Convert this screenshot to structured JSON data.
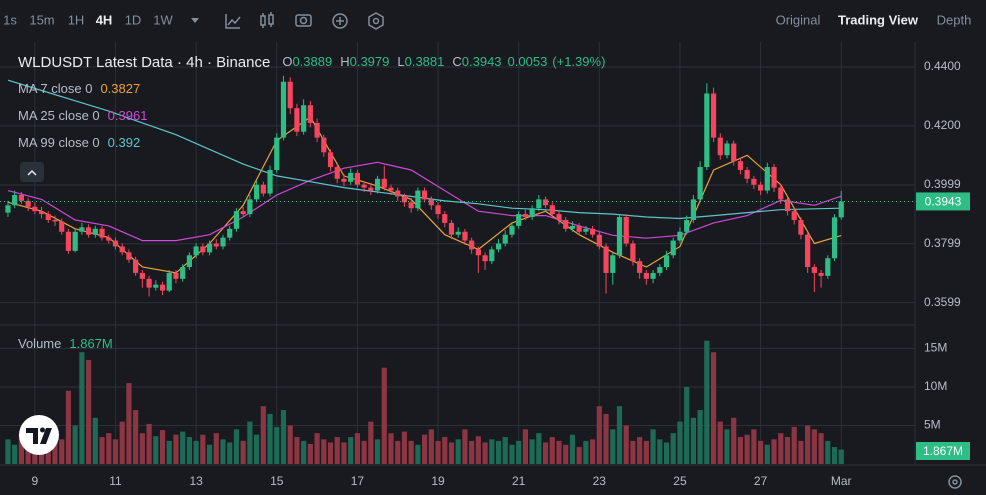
{
  "toolbar": {
    "intervals": [
      "1s",
      "15m",
      "1H",
      "4H",
      "1D",
      "1W"
    ],
    "active": "4H",
    "views": [
      "Original",
      "Trading View",
      "Depth"
    ],
    "active_view": "Trading View"
  },
  "chart_data": {
    "type": "candlestick",
    "title": "WLDUSDT Latest Data · 4h · Binance",
    "ohlc_labels": [
      "O",
      "H",
      "L",
      "C"
    ],
    "change": 0.0053,
    "change_percent": {
      "value": 1.39,
      "label": "(+1.39%)"
    },
    "categories": [
      null,
      null,
      null,
      null,
      "9",
      null,
      null,
      null,
      null,
      null,
      null,
      null,
      null,
      null,
      null,
      null,
      "11",
      null,
      null,
      null,
      null,
      null,
      null,
      null,
      null,
      null,
      null,
      null,
      "13",
      null,
      null,
      null,
      null,
      null,
      null,
      null,
      null,
      null,
      null,
      null,
      "15",
      null,
      null,
      null,
      null,
      null,
      null,
      null,
      null,
      null,
      null,
      null,
      "17",
      null,
      null,
      null,
      null,
      null,
      null,
      null,
      null,
      null,
      null,
      null,
      "19",
      null,
      null,
      null,
      null,
      null,
      null,
      null,
      null,
      null,
      null,
      null,
      "21",
      null,
      null,
      null,
      null,
      null,
      null,
      null,
      null,
      null,
      null,
      null,
      "23",
      null,
      null,
      null,
      null,
      null,
      null,
      null,
      null,
      null,
      null,
      null,
      "25",
      null,
      null,
      null,
      null,
      null,
      null,
      null,
      null,
      null,
      null,
      null,
      "27",
      null,
      null,
      null,
      null,
      null,
      null,
      null,
      null,
      null,
      null,
      null,
      "Mar"
    ],
    "open": [
      0.3905,
      0.393,
      0.3965,
      0.3945,
      0.3925,
      0.391,
      0.39,
      0.388,
      0.3875,
      0.384,
      0.3775,
      0.384,
      0.3855,
      0.383,
      0.385,
      0.382,
      0.381,
      0.379,
      0.377,
      0.3745,
      0.37,
      0.368,
      0.365,
      0.366,
      0.364,
      0.37,
      0.368,
      0.372,
      0.376,
      0.379,
      0.377,
      0.38,
      0.379,
      0.382,
      0.385,
      0.391,
      0.39,
      0.395,
      0.4,
      0.397,
      0.405,
      0.416,
      0.435,
      0.426,
      0.418,
      0.427,
      0.421,
      0.416,
      0.411,
      0.406,
      0.402,
      0.401,
      0.404,
      0.4,
      0.399,
      0.398,
      0.402,
      0.399,
      0.398,
      0.396,
      0.394,
      0.392,
      0.398,
      0.395,
      0.393,
      0.39,
      0.387,
      0.383,
      0.384,
      0.381,
      0.378,
      0.376,
      0.374,
      0.378,
      0.38,
      0.383,
      0.386,
      0.39,
      0.389,
      0.392,
      0.395,
      0.393,
      0.39,
      0.388,
      0.385,
      0.386,
      0.384,
      0.385,
      0.383,
      0.379,
      0.37,
      0.376,
      0.389,
      0.38,
      0.374,
      0.37,
      0.368,
      0.37,
      0.372,
      0.376,
      0.381,
      0.384,
      0.388,
      0.395,
      0.406,
      0.431,
      0.416,
      0.41,
      0.414,
      0.408,
      0.405,
      0.402,
      0.4,
      0.398,
      0.406,
      0.399,
      0.395,
      0.391,
      0.388,
      0.383,
      0.372,
      0.37,
      0.369,
      0.375,
      0.3889
    ],
    "high": [
      0.3945,
      0.398,
      0.3975,
      0.3955,
      0.394,
      0.3925,
      0.391,
      0.3895,
      0.3885,
      0.385,
      0.385,
      0.387,
      0.3865,
      0.386,
      0.386,
      0.383,
      0.382,
      0.38,
      0.378,
      0.3755,
      0.371,
      0.369,
      0.3675,
      0.367,
      0.371,
      0.371,
      0.373,
      0.377,
      0.38,
      0.38,
      0.381,
      0.3815,
      0.383,
      0.386,
      0.392,
      0.3925,
      0.3965,
      0.4015,
      0.401,
      0.4065,
      0.4175,
      0.437,
      0.4365,
      0.4275,
      0.429,
      0.4285,
      0.4225,
      0.417,
      0.412,
      0.407,
      0.4035,
      0.4055,
      0.405,
      0.401,
      0.4005,
      0.403,
      0.4065,
      0.4,
      0.399,
      0.397,
      0.3955,
      0.399,
      0.399,
      0.396,
      0.394,
      0.391,
      0.388,
      0.3855,
      0.385,
      0.382,
      0.379,
      0.377,
      0.379,
      0.3815,
      0.3845,
      0.387,
      0.391,
      0.3915,
      0.393,
      0.3965,
      0.396,
      0.394,
      0.391,
      0.389,
      0.3875,
      0.387,
      0.386,
      0.386,
      0.384,
      0.38,
      0.377,
      0.39,
      0.39,
      0.381,
      0.375,
      0.371,
      0.371,
      0.373,
      0.3775,
      0.382,
      0.3855,
      0.3895,
      0.3965,
      0.408,
      0.4345,
      0.433,
      0.4175,
      0.415,
      0.415,
      0.409,
      0.406,
      0.403,
      0.401,
      0.4075,
      0.407,
      0.4,
      0.396,
      0.392,
      0.389,
      0.384,
      0.373,
      0.371,
      0.376,
      0.39,
      0.3979
    ],
    "low": [
      0.389,
      0.392,
      0.3935,
      0.391,
      0.39,
      0.3885,
      0.387,
      0.386,
      0.383,
      0.3765,
      0.377,
      0.383,
      0.382,
      0.382,
      0.381,
      0.38,
      0.378,
      0.376,
      0.3735,
      0.369,
      0.365,
      0.362,
      0.364,
      0.3625,
      0.3635,
      0.3665,
      0.367,
      0.371,
      0.375,
      0.376,
      0.376,
      0.378,
      0.378,
      0.381,
      0.384,
      0.389,
      0.389,
      0.394,
      0.396,
      0.396,
      0.404,
      0.415,
      0.424,
      0.4165,
      0.417,
      0.4195,
      0.4145,
      0.4095,
      0.4045,
      0.4005,
      0.3995,
      0.4,
      0.399,
      0.3975,
      0.3965,
      0.397,
      0.398,
      0.3965,
      0.3945,
      0.3925,
      0.3905,
      0.391,
      0.394,
      0.3915,
      0.3885,
      0.3855,
      0.3815,
      0.382,
      0.3795,
      0.3765,
      0.37,
      0.371,
      0.373,
      0.377,
      0.379,
      0.382,
      0.385,
      0.388,
      0.388,
      0.391,
      0.392,
      0.389,
      0.3865,
      0.384,
      0.384,
      0.383,
      0.383,
      0.382,
      0.378,
      0.363,
      0.366,
      0.375,
      0.379,
      0.3725,
      0.368,
      0.366,
      0.3665,
      0.369,
      0.371,
      0.375,
      0.38,
      0.383,
      0.387,
      0.394,
      0.405,
      0.4145,
      0.4085,
      0.409,
      0.4065,
      0.4035,
      0.4005,
      0.3985,
      0.3965,
      0.397,
      0.3975,
      0.3935,
      0.3895,
      0.3865,
      0.3815,
      0.37,
      0.3635,
      0.365,
      0.368,
      0.374,
      0.3881
    ],
    "close": [
      0.393,
      0.3965,
      0.3945,
      0.3925,
      0.391,
      0.39,
      0.388,
      0.3875,
      0.384,
      0.3775,
      0.384,
      0.3855,
      0.383,
      0.385,
      0.382,
      0.381,
      0.379,
      0.377,
      0.3745,
      0.37,
      0.368,
      0.365,
      0.366,
      0.364,
      0.37,
      0.368,
      0.372,
      0.376,
      0.379,
      0.377,
      0.38,
      0.379,
      0.382,
      0.385,
      0.391,
      0.39,
      0.395,
      0.4,
      0.397,
      0.405,
      0.416,
      0.435,
      0.426,
      0.418,
      0.427,
      0.421,
      0.416,
      0.411,
      0.406,
      0.402,
      0.401,
      0.404,
      0.4,
      0.399,
      0.398,
      0.402,
      0.399,
      0.398,
      0.396,
      0.394,
      0.392,
      0.398,
      0.395,
      0.393,
      0.39,
      0.387,
      0.383,
      0.384,
      0.381,
      0.378,
      0.376,
      0.374,
      0.378,
      0.38,
      0.383,
      0.386,
      0.39,
      0.389,
      0.392,
      0.395,
      0.393,
      0.39,
      0.388,
      0.385,
      0.386,
      0.384,
      0.385,
      0.383,
      0.379,
      0.37,
      0.376,
      0.389,
      0.38,
      0.374,
      0.37,
      0.368,
      0.37,
      0.372,
      0.376,
      0.381,
      0.384,
      0.388,
      0.395,
      0.406,
      0.431,
      0.416,
      0.41,
      0.414,
      0.408,
      0.405,
      0.402,
      0.4,
      0.398,
      0.406,
      0.399,
      0.395,
      0.391,
      0.388,
      0.383,
      0.372,
      0.37,
      0.369,
      0.375,
      0.3889,
      0.3943
    ],
    "up_color": "#2ebd85",
    "down_color": "#f6465d",
    "ylim": [
      0.354,
      0.4485
    ],
    "yticks": [
      0.3599,
      0.3799,
      0.3999,
      {
        "value": 0.42,
        "label": "0.4200"
      },
      {
        "value": 0.44,
        "label": "0.4400"
      }
    ],
    "grid": true,
    "last_price_line": true,
    "series": [
      {
        "name": "MA 7 close 0",
        "color": "#e9a23b",
        "x": [
          0,
          5,
          10,
          15,
          20,
          25,
          30,
          35,
          40,
          45,
          50,
          55,
          60,
          65,
          70,
          75,
          80,
          85,
          90,
          95,
          100,
          105,
          110,
          115,
          120,
          124
        ],
        "values": [
          0.394,
          0.391,
          0.385,
          0.382,
          0.372,
          0.37,
          0.38,
          0.393,
          0.415,
          0.423,
          0.403,
          0.3995,
          0.395,
          0.383,
          0.378,
          0.387,
          0.391,
          0.383,
          0.377,
          0.372,
          0.379,
          0.405,
          0.41,
          0.4,
          0.38,
          0.3827
        ]
      },
      {
        "name": "MA 25 close 0",
        "color": "#d048d6",
        "x": [
          0,
          5,
          10,
          15,
          20,
          25,
          30,
          35,
          40,
          45,
          50,
          55,
          60,
          65,
          70,
          75,
          80,
          85,
          90,
          95,
          100,
          105,
          110,
          115,
          120,
          124
        ],
        "values": [
          0.398,
          0.395,
          0.388,
          0.386,
          0.381,
          0.381,
          0.383,
          0.389,
          0.3965,
          0.4015,
          0.4056,
          0.4076,
          0.405,
          0.398,
          0.391,
          0.3895,
          0.3895,
          0.386,
          0.3828,
          0.3818,
          0.3828,
          0.387,
          0.3895,
          0.3947,
          0.393,
          0.3961
        ]
      },
      {
        "name": "MA 99 close 0",
        "color": "#5cc6cc",
        "x": [
          0,
          5,
          10,
          15,
          20,
          25,
          30,
          35,
          40,
          45,
          50,
          55,
          60,
          65,
          70,
          75,
          80,
          85,
          90,
          95,
          100,
          105,
          110,
          115,
          120,
          124
        ],
        "values": [
          0.4355,
          0.432,
          0.4285,
          0.425,
          0.421,
          0.417,
          0.412,
          0.407,
          0.403,
          0.401,
          0.399,
          0.3975,
          0.396,
          0.3945,
          0.3935,
          0.392,
          0.3915,
          0.3905,
          0.39,
          0.389,
          0.3885,
          0.3895,
          0.3905,
          0.3915,
          0.3918,
          0.392
        ]
      }
    ],
    "volume": {
      "name": "Volume",
      "values": [
        3.2,
        2.5,
        4.0,
        3.5,
        2.8,
        3.0,
        3.8,
        4.5,
        3.2,
        9.5,
        5.0,
        14.5,
        13.5,
        6.0,
        3.5,
        4.0,
        3.2,
        5.5,
        10.5,
        7.0,
        4.0,
        5.2,
        3.6,
        4.4,
        3.0,
        3.8,
        4.2,
        3.5,
        3.0,
        3.8,
        2.5,
        4.0,
        3.2,
        2.8,
        4.5,
        3.0,
        5.5,
        3.8,
        7.5,
        6.5,
        4.8,
        7.0,
        5.0,
        3.5,
        3.0,
        2.6,
        4.0,
        3.2,
        2.8,
        3.5,
        2.8,
        3.5,
        4.0,
        3.0,
        5.5,
        3.2,
        12.5,
        4.0,
        3.0,
        4.2,
        3.0,
        2.5,
        3.8,
        4.5,
        3.0,
        3.5,
        2.8,
        3.2,
        4.5,
        3.0,
        3.6,
        2.8,
        3.2,
        3.0,
        3.5,
        2.5,
        3.0,
        4.5,
        3.2,
        4.0,
        2.8,
        3.5,
        3.0,
        2.5,
        3.8,
        2.2,
        3.0,
        3.2,
        7.5,
        6.5,
        4.5,
        7.5,
        5.0,
        3.0,
        3.5,
        3.0,
        4.5,
        3.2,
        2.8,
        4.0,
        5.5,
        10.0,
        6.0,
        7.0,
        16.0,
        14.5,
        5.5,
        4.5,
        6.0,
        3.5,
        3.8,
        4.5,
        3.0,
        2.5,
        3.2,
        4.0,
        3.5,
        4.8,
        3.0,
        5.0,
        4.5,
        4.0,
        3.0,
        2.2,
        1.867
      ],
      "last_label": "1.867M",
      "up_color": "#1d6b56",
      "down_color": "#8c3543",
      "ylim": [
        0,
        17
      ],
      "yticks": [
        {
          "value": 5,
          "label": "5M"
        },
        {
          "value": 10,
          "label": "10M"
        },
        {
          "value": 15,
          "label": "15M"
        }
      ]
    }
  }
}
